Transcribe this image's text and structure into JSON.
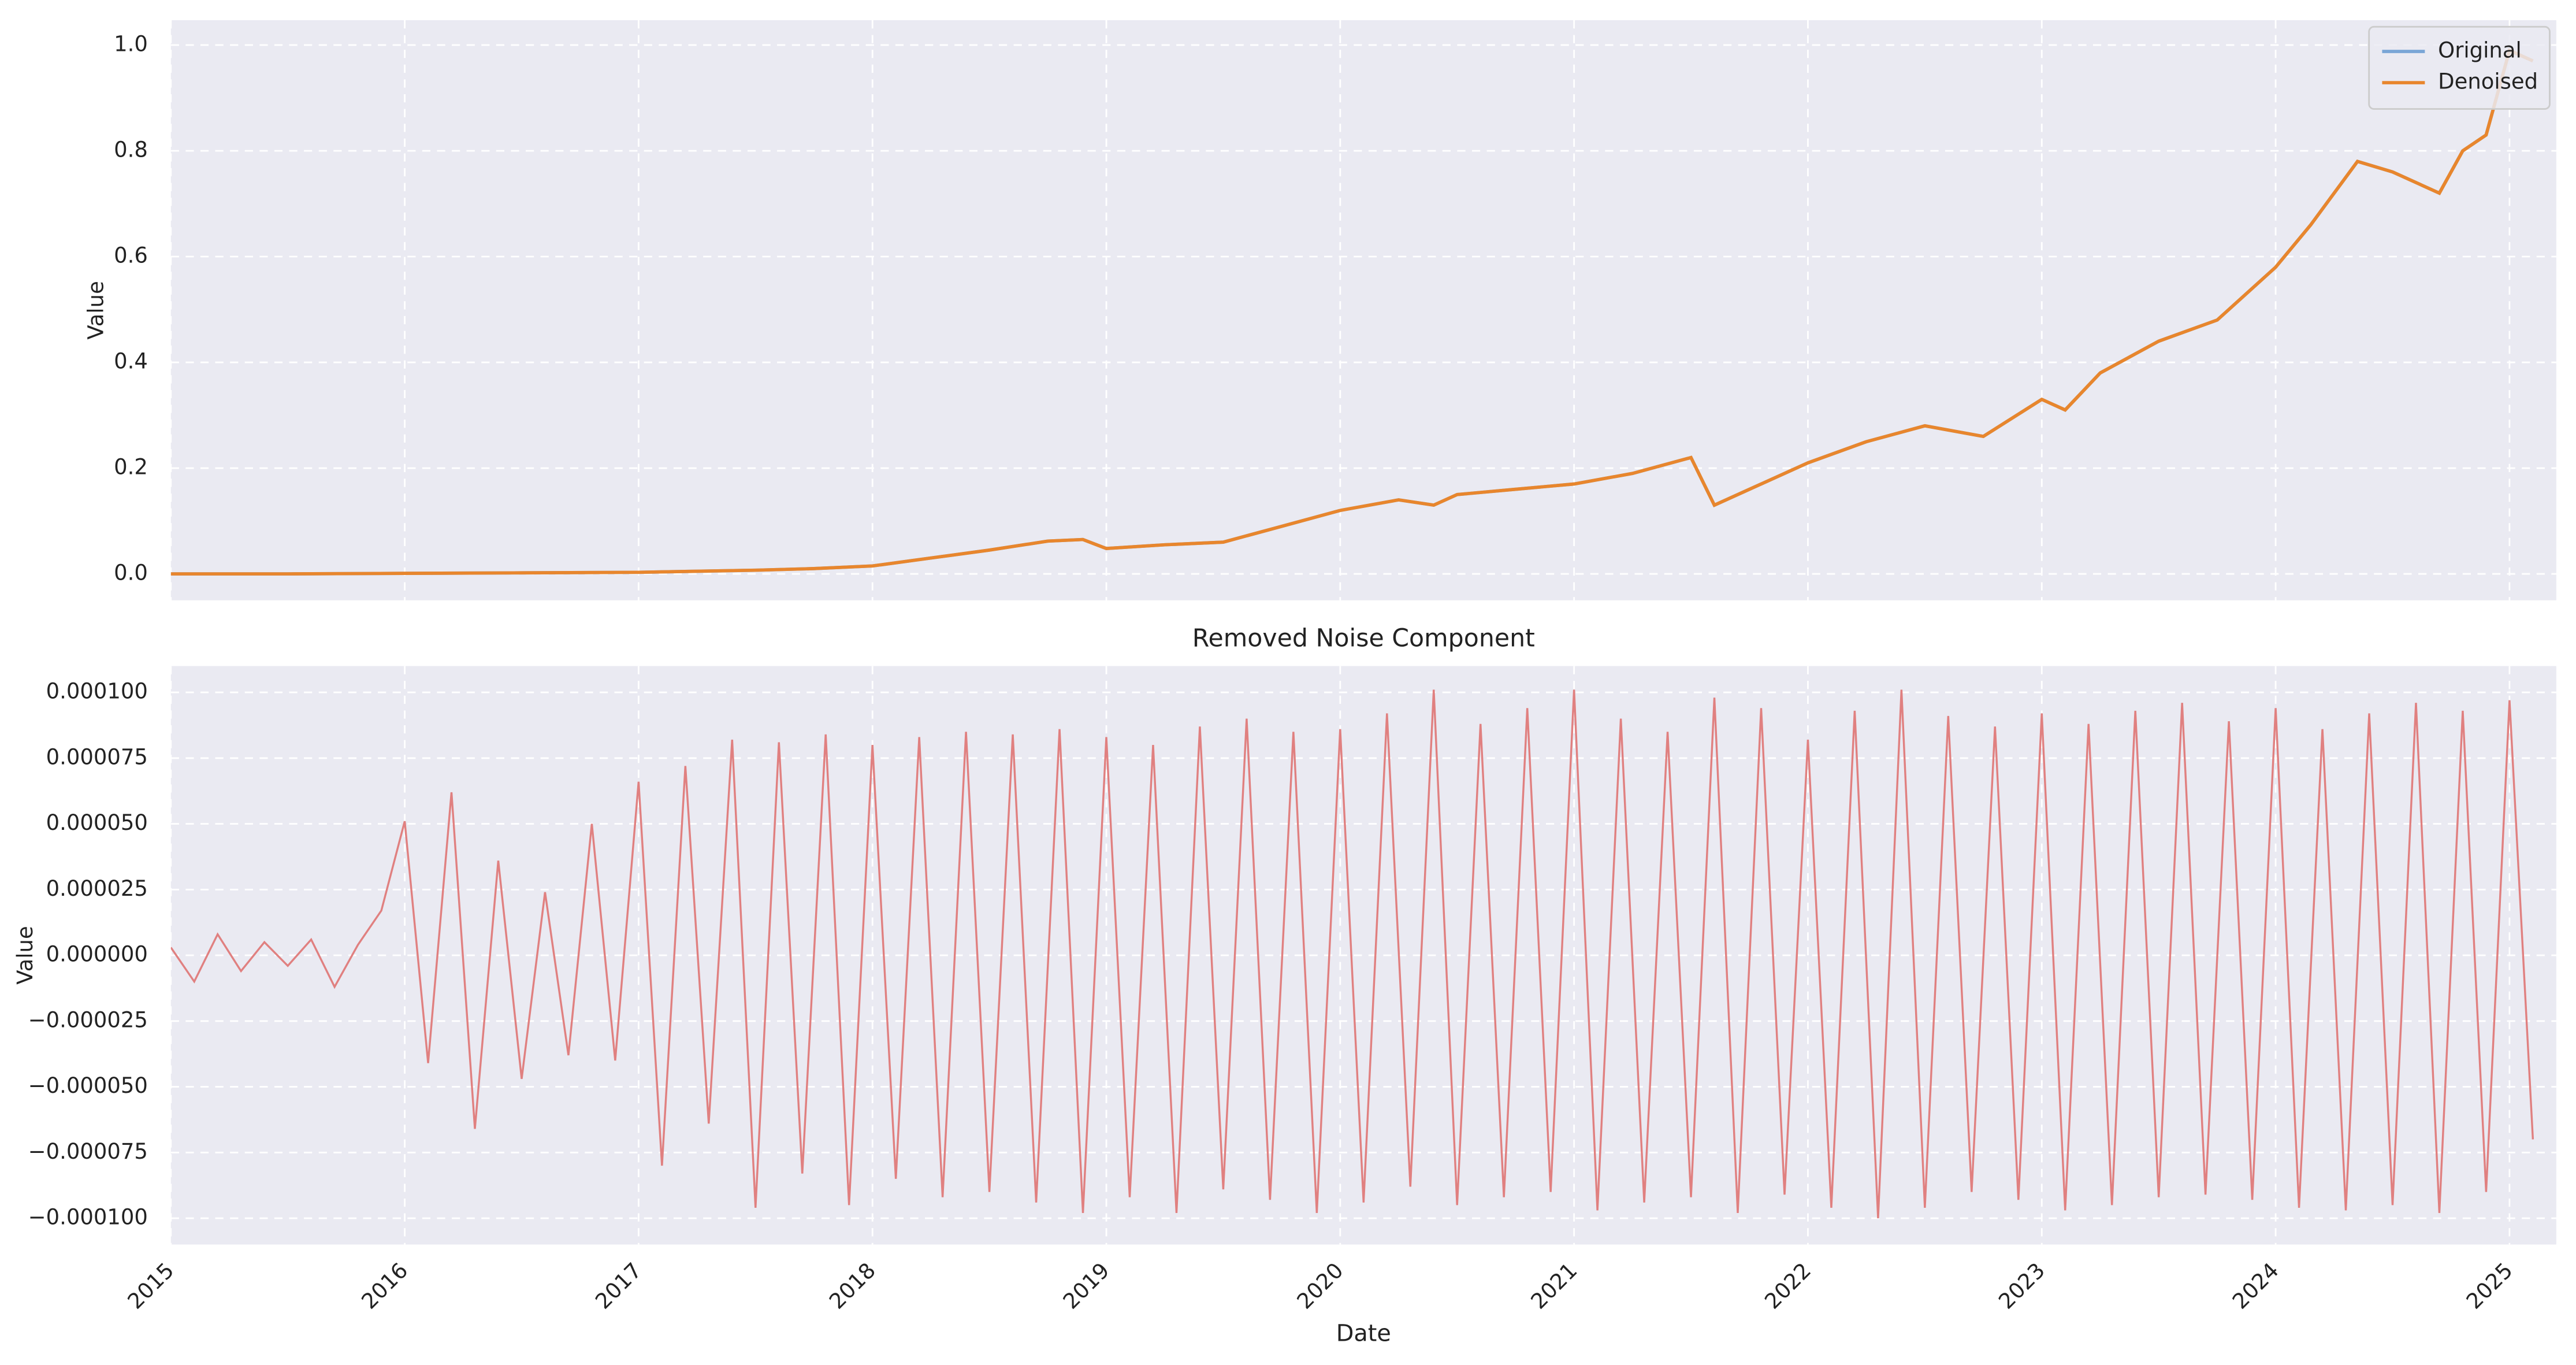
{
  "chart_data": [
    {
      "type": "line",
      "ylabel": "Value",
      "x": [
        2015.0,
        2015.5,
        2016.0,
        2016.5,
        2017.0,
        2017.25,
        2017.5,
        2017.75,
        2018.0,
        2018.25,
        2018.5,
        2018.75,
        2018.9,
        2019.0,
        2019.25,
        2019.5,
        2019.75,
        2020.0,
        2020.25,
        2020.4,
        2020.5,
        2020.75,
        2021.0,
        2021.25,
        2021.5,
        2021.6,
        2021.75,
        2022.0,
        2022.25,
        2022.5,
        2022.75,
        2023.0,
        2023.1,
        2023.25,
        2023.5,
        2023.75,
        2024.0,
        2024.15,
        2024.35,
        2024.5,
        2024.7,
        2024.8,
        2024.9,
        2025.0,
        2025.1
      ],
      "series": [
        {
          "name": "Original",
          "color": "#7aa6d6",
          "values": [
            0,
            0,
            0.001,
            0.002,
            0.003,
            0.005,
            0.007,
            0.01,
            0.015,
            0.03,
            0.045,
            0.062,
            0.065,
            0.048,
            0.055,
            0.06,
            0.09,
            0.12,
            0.14,
            0.13,
            0.15,
            0.16,
            0.17,
            0.19,
            0.22,
            0.13,
            0.16,
            0.21,
            0.25,
            0.28,
            0.26,
            0.33,
            0.31,
            0.38,
            0.44,
            0.48,
            0.58,
            0.66,
            0.78,
            0.76,
            0.72,
            0.8,
            0.83,
            0.99,
            0.97
          ]
        },
        {
          "name": "Denoised",
          "color": "#e8862d",
          "values": [
            0,
            0,
            0.001,
            0.002,
            0.003,
            0.005,
            0.007,
            0.01,
            0.015,
            0.03,
            0.045,
            0.062,
            0.065,
            0.048,
            0.055,
            0.06,
            0.09,
            0.12,
            0.14,
            0.13,
            0.15,
            0.16,
            0.17,
            0.19,
            0.22,
            0.13,
            0.16,
            0.21,
            0.25,
            0.28,
            0.26,
            0.33,
            0.31,
            0.38,
            0.44,
            0.48,
            0.58,
            0.66,
            0.78,
            0.76,
            0.72,
            0.8,
            0.83,
            0.99,
            0.97
          ]
        }
      ],
      "xlim": [
        2015,
        2025.2
      ],
      "xticks": [
        2015,
        2016,
        2017,
        2018,
        2019,
        2020,
        2021,
        2022,
        2023,
        2024,
        2025
      ],
      "ylim": [
        -0.05,
        1.047
      ],
      "yticks": [
        {
          "value": 0,
          "label": "0.0"
        },
        0.2,
        0.4,
        0.6,
        0.8,
        {
          "value": 1,
          "label": "1.0"
        }
      ],
      "grid": true,
      "legend": "upper right"
    },
    {
      "type": "line",
      "title": "Removed Noise Component",
      "xlabel": "Date",
      "ylabel": "Value",
      "color": "#e08080",
      "x": [
        2015.0,
        2015.1,
        2015.2,
        2015.3,
        2015.4,
        2015.5,
        2015.6,
        2015.7,
        2015.8,
        2015.9,
        2016.0,
        2016.1,
        2016.2,
        2016.3,
        2016.4,
        2016.5,
        2016.6,
        2016.7,
        2016.8,
        2016.9,
        2017.0,
        2017.1,
        2017.2,
        2017.3,
        2017.4,
        2017.5,
        2017.6,
        2017.7,
        2017.8,
        2017.9,
        2018.0,
        2018.1,
        2018.2,
        2018.3,
        2018.4,
        2018.5,
        2018.6,
        2018.7,
        2018.8,
        2018.9,
        2019.0,
        2019.1,
        2019.2,
        2019.3,
        2019.4,
        2019.5,
        2019.6,
        2019.7,
        2019.8,
        2019.9,
        2020.0,
        2020.1,
        2020.2,
        2020.3,
        2020.4,
        2020.5,
        2020.6,
        2020.7,
        2020.8,
        2020.9,
        2021.0,
        2021.1,
        2021.2,
        2021.3,
        2021.4,
        2021.5,
        2021.6,
        2021.7,
        2021.8,
        2021.9,
        2022.0,
        2022.1,
        2022.2,
        2022.3,
        2022.4,
        2022.5,
        2022.6,
        2022.7,
        2022.8,
        2022.9,
        2023.0,
        2023.1,
        2023.2,
        2023.3,
        2023.4,
        2023.5,
        2023.6,
        2023.7,
        2023.8,
        2023.9,
        2024.0,
        2024.1,
        2024.2,
        2024.3,
        2024.4,
        2024.5,
        2024.6,
        2024.7,
        2024.8,
        2024.9,
        2025.0,
        2025.1
      ],
      "values": [
        3e-06,
        -1e-05,
        8e-06,
        -6e-06,
        5e-06,
        -4e-06,
        6e-06,
        -1.2e-05,
        4e-06,
        1.7e-05,
        5.1e-05,
        -4.1e-05,
        6.2e-05,
        -6.6e-05,
        3.6e-05,
        -4.7e-05,
        2.4e-05,
        -3.8e-05,
        5e-05,
        -4e-05,
        6.6e-05,
        -8e-05,
        7.2e-05,
        -6.4e-05,
        8.2e-05,
        -9.6e-05,
        8.1e-05,
        -8.3e-05,
        8.4e-05,
        -9.5e-05,
        8e-05,
        -8.5e-05,
        8.3e-05,
        -9.2e-05,
        8.5e-05,
        -9e-05,
        8.4e-05,
        -9.4e-05,
        8.6e-05,
        -9.8e-05,
        8.3e-05,
        -9.2e-05,
        8e-05,
        -9.8e-05,
        8.7e-05,
        -8.9e-05,
        9e-05,
        -9.3e-05,
        8.5e-05,
        -9.8e-05,
        8.6e-05,
        -9.4e-05,
        9.2e-05,
        -8.8e-05,
        0.000101,
        -9.5e-05,
        8.8e-05,
        -9.2e-05,
        9.4e-05,
        -9e-05,
        0.000101,
        -9.7e-05,
        9e-05,
        -9.4e-05,
        8.5e-05,
        -9.2e-05,
        9.8e-05,
        -9.8e-05,
        9.4e-05,
        -9.1e-05,
        8.2e-05,
        -9.6e-05,
        9.3e-05,
        -0.0001,
        0.000101,
        -9.6e-05,
        9.1e-05,
        -9e-05,
        8.7e-05,
        -9.3e-05,
        9.2e-05,
        -9.7e-05,
        8.8e-05,
        -9.5e-05,
        9.3e-05,
        -9.2e-05,
        9.6e-05,
        -9.1e-05,
        8.9e-05,
        -9.3e-05,
        9.4e-05,
        -9.6e-05,
        8.6e-05,
        -9.7e-05,
        9.2e-05,
        -9.5e-05,
        9.6e-05,
        -9.8e-05,
        9.3e-05,
        -9e-05,
        9.7e-05,
        -7e-05
      ],
      "xlim": [
        2015,
        2025.2
      ],
      "xticks": [
        2015,
        2016,
        2017,
        2018,
        2019,
        2020,
        2021,
        2022,
        2023,
        2024,
        2025
      ],
      "ylim": [
        -0.00011,
        0.00011
      ],
      "yticks": [
        {
          "value": -0.0001,
          "label": "−0.000100"
        },
        {
          "value": -7.5e-05,
          "label": "−0.000075"
        },
        {
          "value": -5e-05,
          "label": "−0.000050"
        },
        {
          "value": -2.5e-05,
          "label": "−0.000025"
        },
        {
          "value": 0,
          "label": "0.000000"
        },
        {
          "value": 2.5e-05,
          "label": "0.000025"
        },
        {
          "value": 5e-05,
          "label": "0.000050"
        },
        {
          "value": 7.5e-05,
          "label": "0.000075"
        },
        {
          "value": 0.0001,
          "label": "0.000100"
        }
      ],
      "grid": true
    }
  ]
}
